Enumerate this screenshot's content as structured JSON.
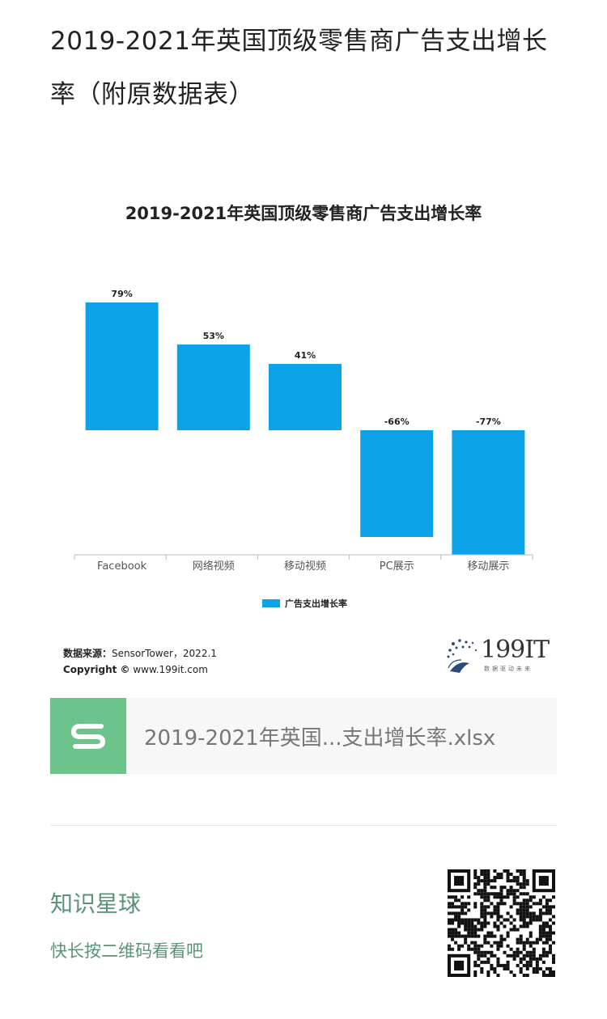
{
  "article": {
    "title": "2019-2021年英国顶级零售商广告支出增长率（附原数据表）"
  },
  "chart_data": {
    "type": "bar",
    "title": "2019-2021年英国顶级零售商广告支出增长率",
    "categories": [
      "Facebook",
      "网络视频",
      "移动视频",
      "PC展示",
      "移动展示"
    ],
    "series": [
      {
        "name": "广告支出增长率",
        "values": [
          79,
          53,
          41,
          -66,
          -77
        ]
      }
    ],
    "data_labels": [
      "79%",
      "53%",
      "41%",
      "-66%",
      "-77%"
    ],
    "unit": "%",
    "color": "#0ba2e8",
    "legend_position": "bottom",
    "grid": false
  },
  "source": {
    "label": "数据来源：",
    "value": "SensorTower，2022.1",
    "copyright_label": "Copyright ©",
    "copyright_value": " www.199it.com"
  },
  "logo": {
    "text": "199IT",
    "tagline": "数据驱动未来"
  },
  "attachment": {
    "icon": "spreadsheet-s-icon",
    "filename": "2019-2021年英国...支出增长率.xlsx",
    "accent": "#6dc48a"
  },
  "footer": {
    "title": "知识星球",
    "subtitle": "快长按二维码看看吧",
    "color": "#5a9478"
  }
}
